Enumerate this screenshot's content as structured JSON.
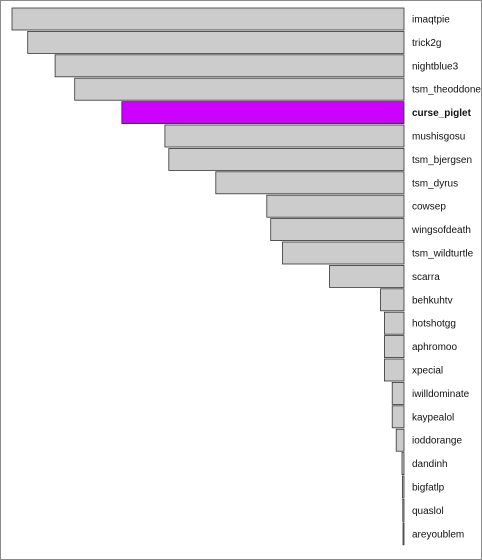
{
  "chart_data": {
    "type": "bar",
    "orientation": "horizontal",
    "categories": [
      "imaqtpie",
      "trick2g",
      "nightblue3",
      "tsm_theoddone",
      "curse_piglet",
      "mushisgosu",
      "tsm_bjergsen",
      "tsm_dyrus",
      "cowsep",
      "wingsofdeath",
      "tsm_wildturtle",
      "scarra",
      "behkuhtv",
      "hotshotgg",
      "aphromoo",
      "xpecial",
      "iwilldominate",
      "kaypealol",
      "ioddorange",
      "dandinh",
      "bigfatlp",
      "quaslol",
      "areyoublem"
    ],
    "values": [
      100,
      96,
      89,
      84,
      72,
      61,
      60,
      48,
      35,
      34,
      31,
      19,
      6,
      5,
      5,
      5,
      3,
      3,
      2,
      0.5,
      0.4,
      0.3,
      0.1
    ],
    "xlim": [
      0,
      100
    ],
    "highlight_category": "curse_piglet",
    "colors": {
      "bar": "#cccccc",
      "highlight": "#cc00ff",
      "edge": "#333333"
    },
    "grid": false,
    "title": "",
    "xlabel": "",
    "ylabel": ""
  }
}
